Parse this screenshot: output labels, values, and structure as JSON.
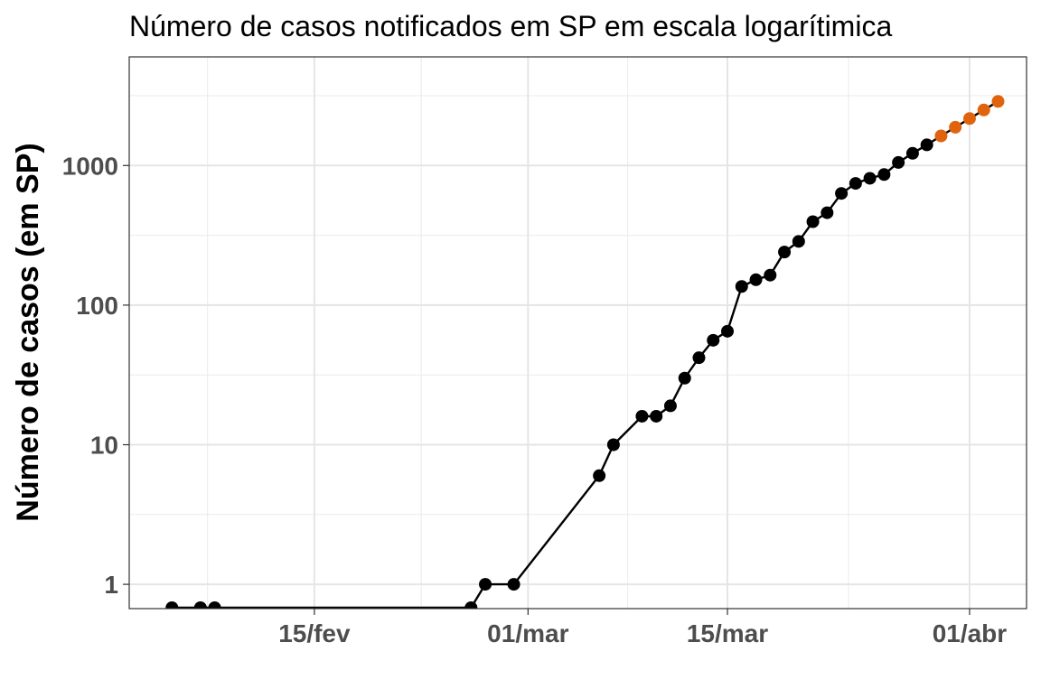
{
  "chart_data": {
    "type": "scatter",
    "title": "Número de casos notificados em SP em escala logarítimica",
    "xlabel": "",
    "ylabel": "Número de casos (em SP)",
    "x_axis": {
      "type": "date",
      "range": [
        "2020-02-02",
        "2020-04-05"
      ],
      "ticks": [
        {
          "date": "2020-02-15",
          "label": "15/fev"
        },
        {
          "date": "2020-03-01",
          "label": "01/mar"
        },
        {
          "date": "2020-03-15",
          "label": "15/mar"
        },
        {
          "date": "2020-04-01",
          "label": "01/abr"
        }
      ]
    },
    "y_axis": {
      "scale": "log10",
      "range": [
        0.67,
        6000
      ],
      "ticks": [
        {
          "value": 1,
          "label": "1"
        },
        {
          "value": 10,
          "label": "10"
        },
        {
          "value": 100,
          "label": "100"
        },
        {
          "value": 1000,
          "label": "1000"
        }
      ]
    },
    "grid": true,
    "legend": "none",
    "series": [
      {
        "color": "#000000",
        "connected": true,
        "points": [
          {
            "x": "2020-02-05",
            "y": 0.68
          },
          {
            "x": "2020-02-07",
            "y": 0.68
          },
          {
            "x": "2020-02-08",
            "y": 0.68
          },
          {
            "x": "2020-02-26",
            "y": 0.68
          },
          {
            "x": "2020-02-27",
            "y": 1
          },
          {
            "x": "2020-02-29",
            "y": 1
          },
          {
            "x": "2020-03-06",
            "y": 6
          },
          {
            "x": "2020-03-07",
            "y": 10
          },
          {
            "x": "2020-03-09",
            "y": 16
          },
          {
            "x": "2020-03-10",
            "y": 16
          },
          {
            "x": "2020-03-11",
            "y": 19
          },
          {
            "x": "2020-03-12",
            "y": 30
          },
          {
            "x": "2020-03-13",
            "y": 42
          },
          {
            "x": "2020-03-14",
            "y": 56
          },
          {
            "x": "2020-03-15",
            "y": 65
          },
          {
            "x": "2020-03-16",
            "y": 136
          },
          {
            "x": "2020-03-17",
            "y": 152
          },
          {
            "x": "2020-03-18",
            "y": 164
          },
          {
            "x": "2020-03-19",
            "y": 240
          },
          {
            "x": "2020-03-20",
            "y": 286
          },
          {
            "x": "2020-03-21",
            "y": 396
          },
          {
            "x": "2020-03-22",
            "y": 459
          },
          {
            "x": "2020-03-23",
            "y": 631
          },
          {
            "x": "2020-03-24",
            "y": 745
          },
          {
            "x": "2020-03-25",
            "y": 810
          },
          {
            "x": "2020-03-26",
            "y": 862
          },
          {
            "x": "2020-03-27",
            "y": 1052
          },
          {
            "x": "2020-03-28",
            "y": 1223
          },
          {
            "x": "2020-03-29",
            "y": 1406
          }
        ]
      },
      {
        "color": "#e0630d",
        "connected": true,
        "points": [
          {
            "x": "2020-03-30",
            "y": 1630
          },
          {
            "x": "2020-03-31",
            "y": 1880
          },
          {
            "x": "2020-04-01",
            "y": 2170
          },
          {
            "x": "2020-04-02",
            "y": 2500
          },
          {
            "x": "2020-04-03",
            "y": 2880
          }
        ]
      }
    ]
  }
}
